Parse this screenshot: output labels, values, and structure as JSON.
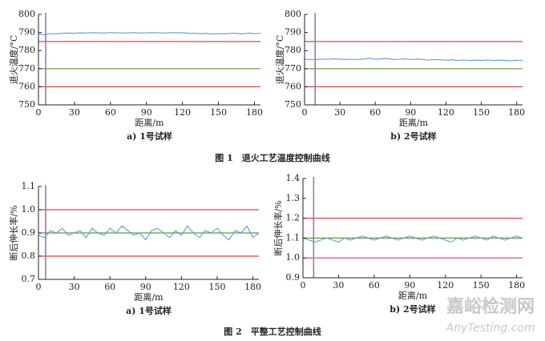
{
  "chart_data": [
    {
      "type": "line",
      "ylabel": "退火温度/°C",
      "xlabel": "距离/m",
      "caption": "a) 1号试样",
      "x": [
        0,
        5,
        10,
        15,
        20,
        25,
        30,
        35,
        40,
        45,
        50,
        55,
        60,
        65,
        70,
        75,
        80,
        85,
        90,
        95,
        100,
        105,
        110,
        115,
        120,
        125,
        130,
        135,
        140,
        145,
        150,
        155,
        160,
        165,
        170,
        175,
        180,
        185
      ],
      "series": [
        {
          "color": "#5b9bd5",
          "values": [
            789.2,
            788.8,
            789.4,
            789.3,
            789.6,
            789.7,
            789.6,
            789.8,
            789.7,
            789.9,
            789.8,
            789.7,
            789.9,
            789.8,
            789.7,
            789.8,
            789.9,
            789.7,
            789.8,
            789.9,
            789.8,
            789.7,
            789.9,
            789.8,
            789.9,
            789.5,
            789.6,
            789.3,
            789.5,
            789.2,
            789.4,
            789.3,
            789.6,
            789.5,
            789.2,
            789.7,
            789.4,
            789.6
          ]
        }
      ],
      "xlim": [
        0,
        185
      ],
      "ylim": [
        750,
        800
      ],
      "xticks": [
        0,
        30,
        60,
        90,
        120,
        150,
        180
      ],
      "yticks": [
        750,
        760,
        770,
        780,
        790,
        800
      ],
      "hlines": [
        {
          "value": 785,
          "color": "#e0404a"
        },
        {
          "value": 760,
          "color": "#e0404a"
        },
        {
          "value": 770,
          "color": "#5aa02c"
        }
      ],
      "vlines": [
        {
          "value": 6,
          "color": "#9b6bb5"
        }
      ]
    },
    {
      "type": "line",
      "ylabel": "退火温度/°C",
      "xlabel": "距离/m",
      "caption": "b) 2号试样",
      "x": [
        0,
        5,
        10,
        15,
        20,
        25,
        30,
        35,
        40,
        45,
        50,
        55,
        60,
        65,
        70,
        75,
        80,
        85,
        90,
        95,
        100,
        105,
        110,
        115,
        120,
        125,
        130,
        135,
        140,
        145,
        150,
        155,
        160,
        165,
        170,
        175,
        180,
        185
      ],
      "series": [
        {
          "color": "#5b9bd5",
          "values": [
            775.2,
            775.0,
            775.1,
            775.3,
            775.2,
            775.4,
            775.3,
            775.1,
            775.2,
            775.0,
            775.3,
            775.8,
            775.2,
            775.4,
            775.6,
            775.1,
            775.2,
            775.5,
            775.0,
            775.3,
            775.1,
            774.8,
            775.0,
            774.9,
            774.7,
            774.9,
            774.6,
            774.8,
            774.5,
            774.7,
            774.6,
            774.8,
            774.5,
            774.7,
            774.6,
            774.4,
            774.7,
            774.5
          ]
        }
      ],
      "xlim": [
        0,
        185
      ],
      "ylim": [
        750,
        800
      ],
      "xticks": [
        0,
        30,
        60,
        90,
        120,
        150,
        180
      ],
      "yticks": [
        750,
        760,
        770,
        780,
        790,
        800
      ],
      "hlines": [
        {
          "value": 785,
          "color": "#e0404a"
        },
        {
          "value": 760,
          "color": "#e0404a"
        },
        {
          "value": 770,
          "color": "#5aa02c"
        }
      ],
      "vlines": [
        {
          "value": 9,
          "color": "#9b6bb5"
        }
      ]
    },
    {
      "type": "line",
      "ylabel": "断后伸长率/%",
      "xlabel": "距离/m",
      "caption": "a) 1号试样",
      "x": [
        0,
        5,
        10,
        15,
        20,
        25,
        30,
        35,
        40,
        45,
        50,
        55,
        60,
        65,
        70,
        75,
        80,
        85,
        90,
        95,
        100,
        105,
        110,
        115,
        120,
        125,
        130,
        135,
        140,
        145,
        150,
        155,
        160,
        165,
        170,
        175,
        180,
        185
      ],
      "series": [
        {
          "color": "#5b9bd5",
          "values": [
            0.89,
            0.88,
            0.91,
            0.9,
            0.92,
            0.89,
            0.9,
            0.91,
            0.88,
            0.92,
            0.9,
            0.89,
            0.92,
            0.9,
            0.93,
            0.91,
            0.89,
            0.9,
            0.87,
            0.91,
            0.92,
            0.9,
            0.88,
            0.91,
            0.89,
            0.93,
            0.9,
            0.88,
            0.91,
            0.9,
            0.92,
            0.89,
            0.87,
            0.91,
            0.9,
            0.93,
            0.88,
            0.9
          ]
        }
      ],
      "xlim": [
        0,
        185
      ],
      "ylim": [
        0.7,
        1.1
      ],
      "xticks": [
        0,
        30,
        60,
        90,
        120,
        150,
        180
      ],
      "yticks": [
        0.7,
        0.8,
        0.9,
        {
          "value": 1,
          "label": "1.0"
        },
        1.1
      ],
      "hlines": [
        {
          "value": 1,
          "color": "#e0404a"
        },
        {
          "value": 0.8,
          "color": "#e0404a"
        },
        {
          "value": 0.9,
          "color": "#5aa02c"
        }
      ],
      "vlines": [
        {
          "value": 6,
          "color": "#9b6bb5"
        }
      ]
    },
    {
      "type": "line",
      "ylabel": "断后伸长率/%",
      "xlabel": "距离/m",
      "caption": "b) 2号试样",
      "x": [
        0,
        5,
        10,
        15,
        20,
        25,
        30,
        35,
        40,
        45,
        50,
        55,
        60,
        65,
        70,
        75,
        80,
        85,
        90,
        95,
        100,
        105,
        110,
        115,
        120,
        125,
        130,
        135,
        140,
        145,
        150,
        155,
        160,
        165,
        170,
        175,
        180,
        185
      ],
      "series": [
        {
          "color": "#5b9bd5",
          "values": [
            1.1,
            1.09,
            1.08,
            1.09,
            1.1,
            1.09,
            1.08,
            1.1,
            1.09,
            1.1,
            1.11,
            1.1,
            1.09,
            1.1,
            1.11,
            1.1,
            1.09,
            1.1,
            1.11,
            1.1,
            1.09,
            1.1,
            1.11,
            1.1,
            1.09,
            1.08,
            1.1,
            1.09,
            1.1,
            1.11,
            1.1,
            1.09,
            1.11,
            1.1,
            1.09,
            1.1,
            1.11,
            1.1
          ]
        }
      ],
      "xlim": [
        0,
        185
      ],
      "ylim": [
        0.9,
        1.4
      ],
      "xticks": [
        0,
        30,
        60,
        90,
        120,
        150,
        180
      ],
      "yticks": [
        0.9,
        {
          "value": 1,
          "label": "1.0"
        },
        1.1,
        1.2,
        1.3,
        1.4
      ],
      "hlines": [
        {
          "value": 1.2,
          "color": "#e0404a"
        },
        {
          "value": 1,
          "color": "#e0404a"
        },
        {
          "value": 1.1,
          "color": "#5aa02c"
        }
      ],
      "vlines": [
        {
          "value": 9,
          "color": "#9b6bb5"
        }
      ]
    }
  ],
  "figure_captions": [
    "图 1　退火工艺温度控制曲线",
    "图 2　平整工艺控制曲线"
  ],
  "watermark": {
    "cn": "嘉峪检测网",
    "en": "AnyTesting.com"
  }
}
